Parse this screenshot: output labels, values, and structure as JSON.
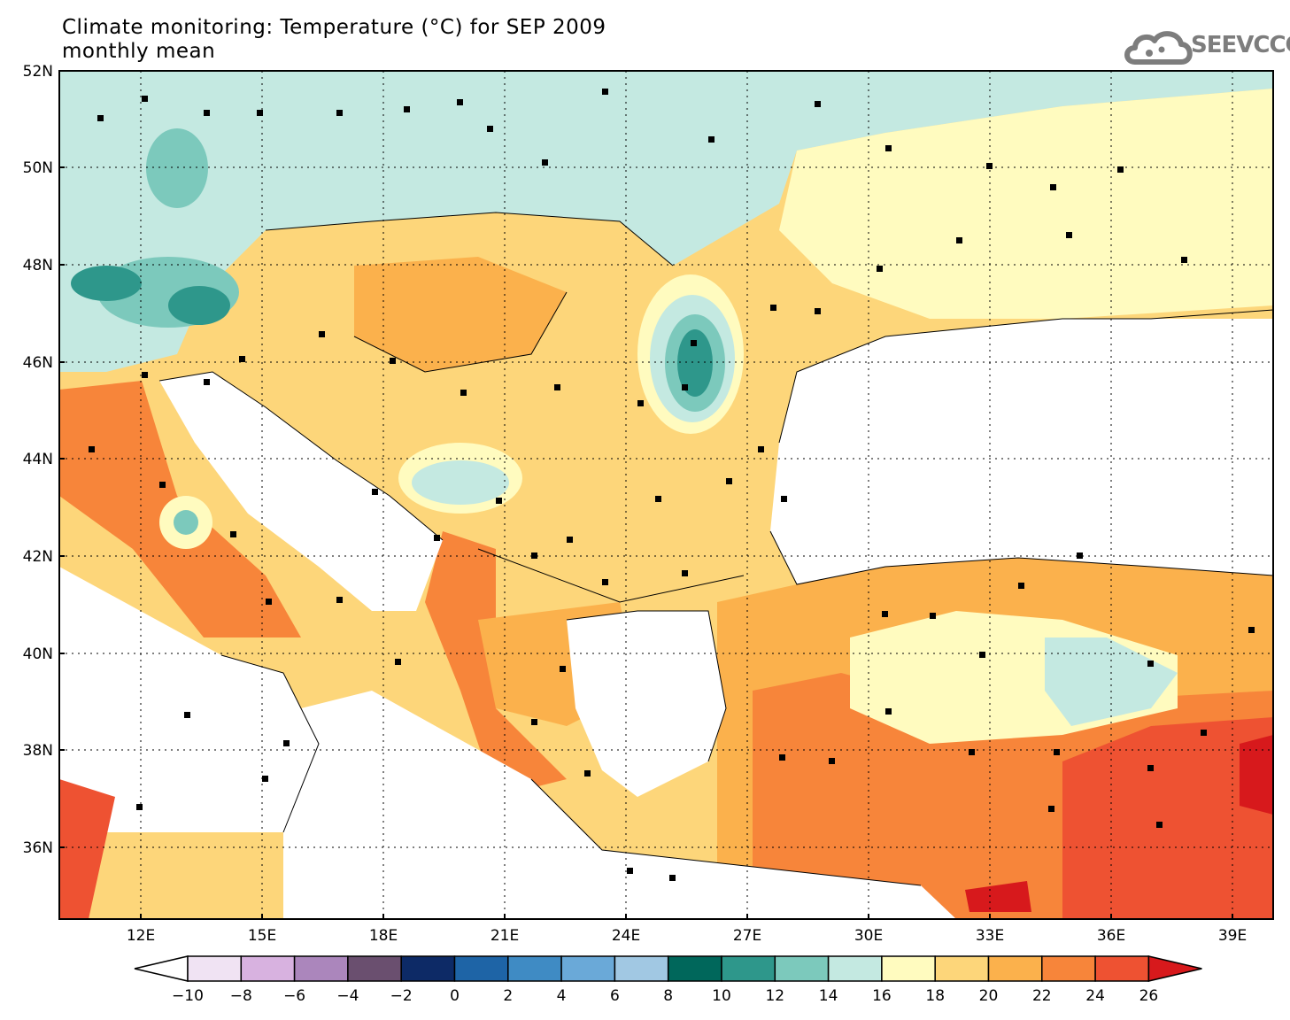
{
  "title": {
    "line1": "Climate monitoring: Temperature (°C) for SEP 2009",
    "line2": "monthly mean"
  },
  "logo": {
    "text": "SEEVCCC",
    "icon": "cloud-logo-icon"
  },
  "map": {
    "lat_labels": [
      "52N",
      "50N",
      "48N",
      "46N",
      "44N",
      "42N",
      "40N",
      "38N",
      "36N"
    ],
    "lon_labels": [
      "12E",
      "15E",
      "18E",
      "21E",
      "24E",
      "27E",
      "30E",
      "33E",
      "36E",
      "39E"
    ]
  },
  "colorbar": {
    "labels": [
      "−10",
      "−8",
      "−6",
      "−4",
      "−2",
      "0",
      "2",
      "4",
      "6",
      "8",
      "10",
      "12",
      "14",
      "16",
      "18",
      "20",
      "22",
      "24",
      "26"
    ],
    "colors": [
      "#f0e3f3",
      "#d8b2e0",
      "#ab86bc",
      "#6a4f6f",
      "#0d2a66",
      "#1e64a6",
      "#3f8bc4",
      "#6aa9d8",
      "#a1c8e3",
      "#00675b",
      "#2e978b",
      "#7cc9bc",
      "#c4e9e1",
      "#fffbbf",
      "#fdd67a",
      "#fbb14c",
      "#f7853a",
      "#ee5232"
    ],
    "low_arrow_color": "#ffffff",
    "high_arrow_color": "#d7191c"
  }
}
